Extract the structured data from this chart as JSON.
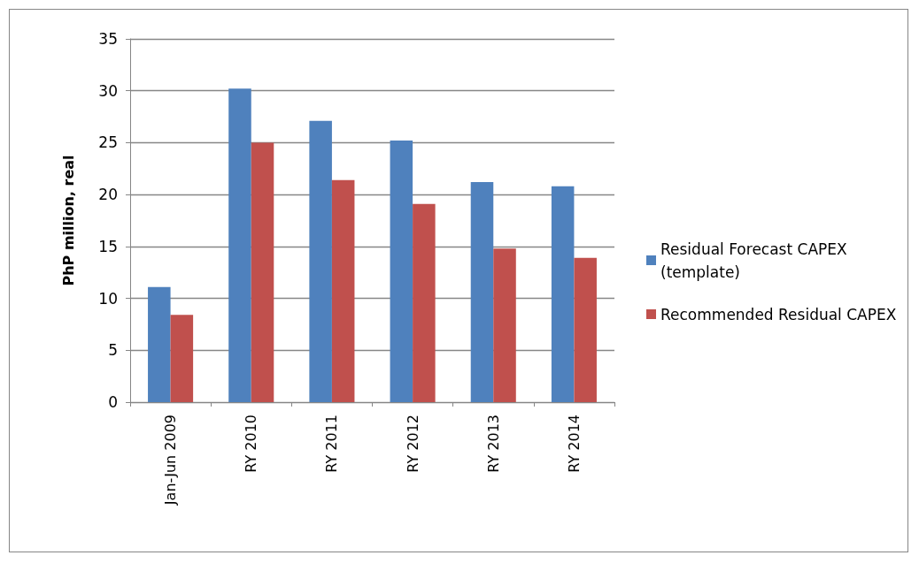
{
  "chart_data": {
    "type": "bar",
    "ylabel": "PhP million, real",
    "categories": [
      "Jan-Jun 2009",
      "RY 2010",
      "RY 2011",
      "RY 2012",
      "RY 2013",
      "RY 2014"
    ],
    "series": [
      {
        "name": "Residual Forecast CAPEX (template)",
        "color": "#4f81bd",
        "values": [
          11.1,
          30.2,
          27.1,
          25.2,
          21.2,
          20.8
        ]
      },
      {
        "name": "Recommended Residual CAPEX",
        "color": "#c0504d",
        "values": [
          8.4,
          25.0,
          21.4,
          19.1,
          14.8,
          13.9
        ]
      }
    ],
    "ylim": [
      0,
      35
    ],
    "yticks": [
      0,
      5,
      10,
      15,
      20,
      25,
      30,
      35
    ],
    "grid": "y",
    "legend": "right"
  }
}
